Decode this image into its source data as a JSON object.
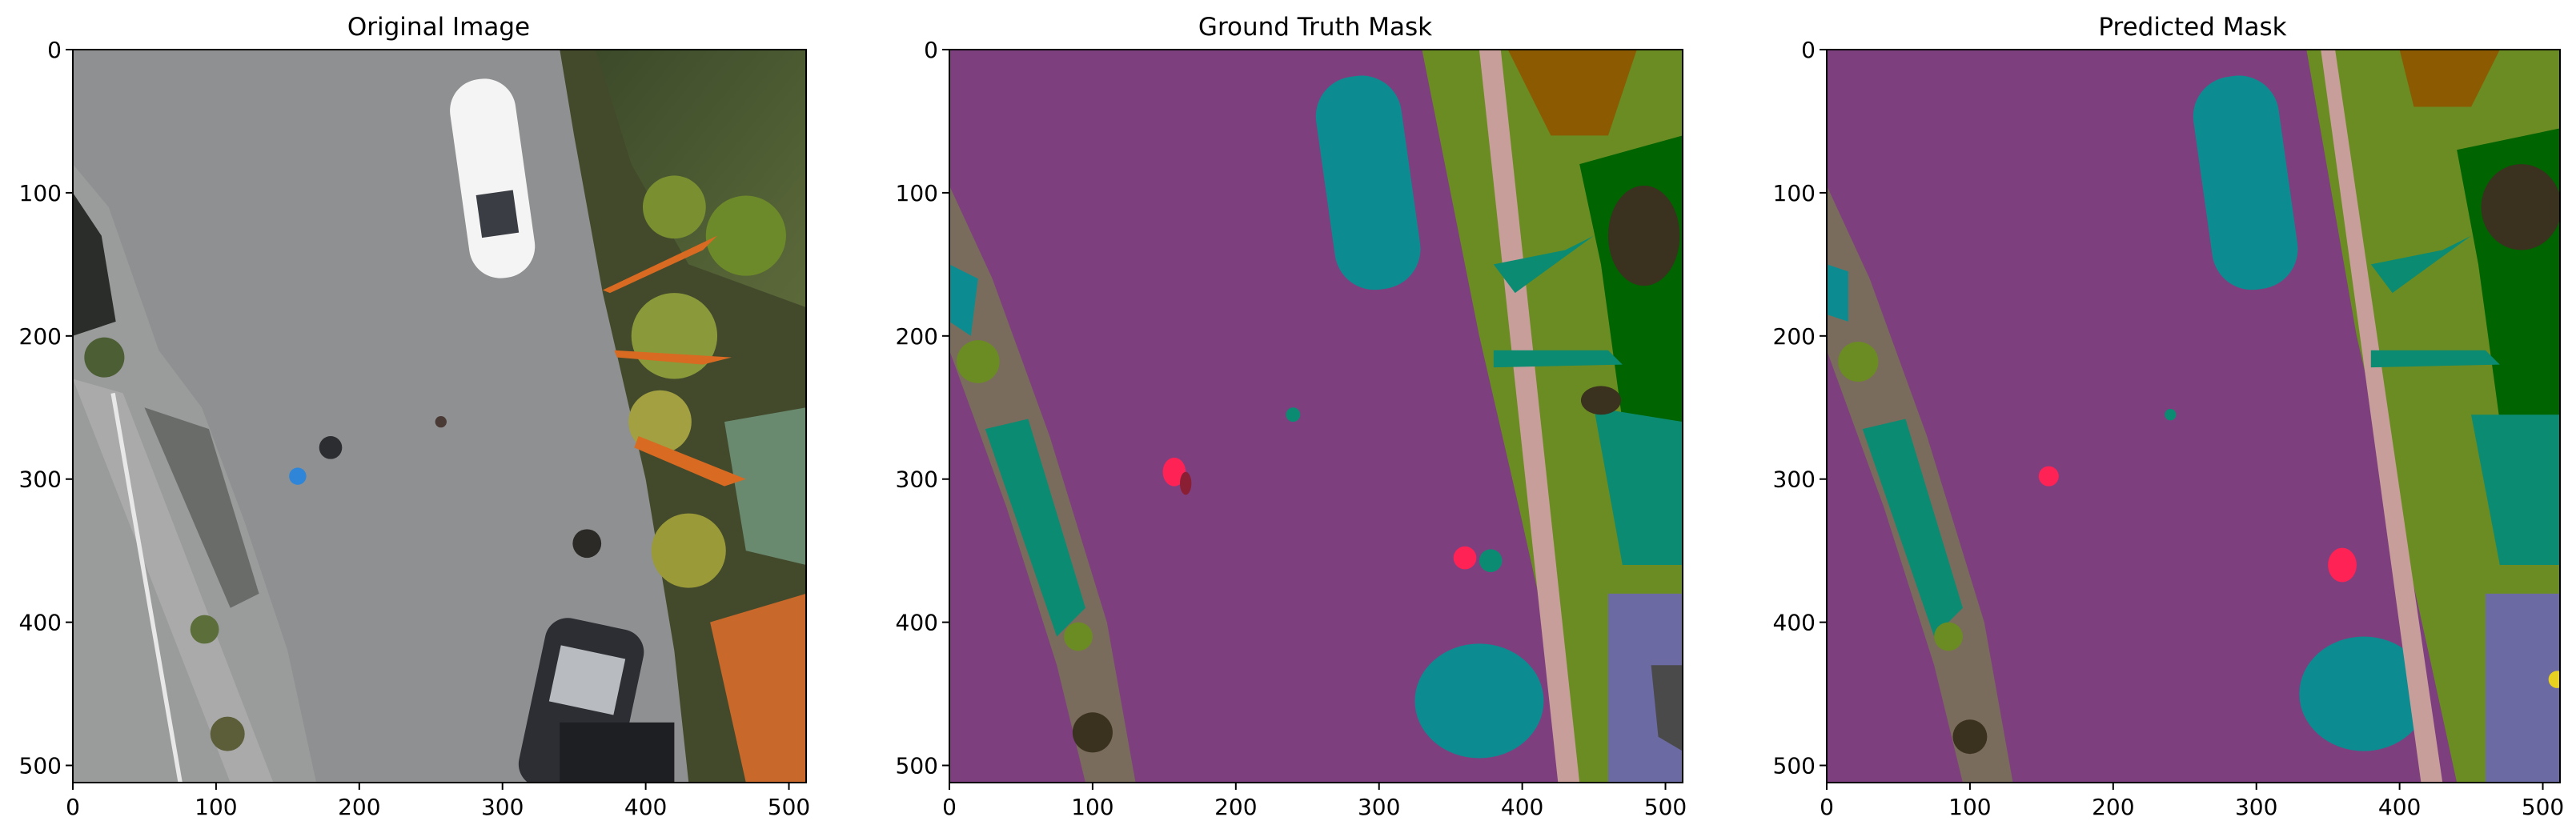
{
  "figure": {
    "panels": [
      {
        "title": "Original Image"
      },
      {
        "title": "Ground Truth Mask"
      },
      {
        "title": "Predicted Mask"
      }
    ],
    "x_ticks": [
      "0",
      "100",
      "200",
      "300",
      "400",
      "500"
    ],
    "y_ticks": [
      "0",
      "100",
      "200",
      "300",
      "400",
      "500"
    ],
    "x_range": [
      0,
      512
    ],
    "y_range": [
      0,
      512
    ]
  },
  "colors": {
    "road": "#7e3f7e",
    "sidewalk": "#7a6c5c",
    "vegetation": "#6b8c23",
    "tree": "#006400",
    "dark_obstacle": "#3a321e",
    "water_teal": "#0c8c90",
    "green_teal": "#0b8b72",
    "roof": "#6b6aa2",
    "person": "#ff2255",
    "dirt": "#8c5a00",
    "pink_path": "#c79e99",
    "asphalt_photo": "#8e8f90"
  }
}
